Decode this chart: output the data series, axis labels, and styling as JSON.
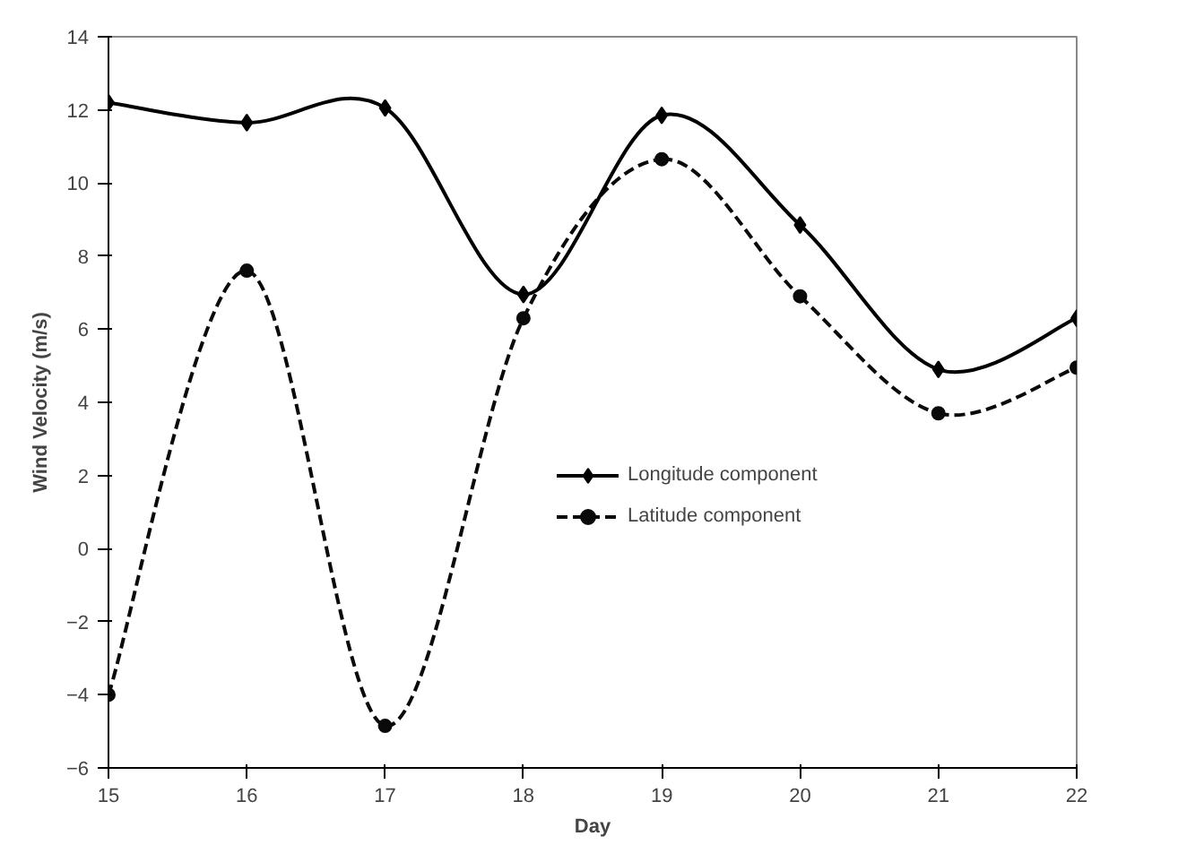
{
  "chart_data": {
    "type": "line",
    "xlabel": "Day",
    "ylabel": "Wind Velocity (m/s)",
    "x": [
      15,
      16,
      17,
      18,
      19,
      20,
      21,
      22
    ],
    "series": [
      {
        "name": "Longitude component",
        "color": "#000000",
        "marker": "diamond",
        "line_style": "solid",
        "values": [
          12.2,
          11.65,
          12.05,
          6.95,
          11.85,
          8.85,
          4.9,
          6.3
        ]
      },
      {
        "name": "Latitude component",
        "color": "#0a0a0a",
        "marker": "circle",
        "line_style": "dashed",
        "values": [
          -4.0,
          7.6,
          -4.85,
          6.3,
          10.65,
          6.9,
          3.7,
          4.95
        ]
      }
    ],
    "xlim": [
      15,
      22
    ],
    "xticks": [
      15,
      16,
      17,
      18,
      19,
      20,
      21,
      22
    ],
    "ylim": [
      -6,
      14
    ],
    "yticks": [
      -6,
      -4,
      -2,
      0,
      2,
      4,
      6,
      8,
      10,
      12,
      14
    ],
    "grid": false,
    "legend": "right"
  }
}
